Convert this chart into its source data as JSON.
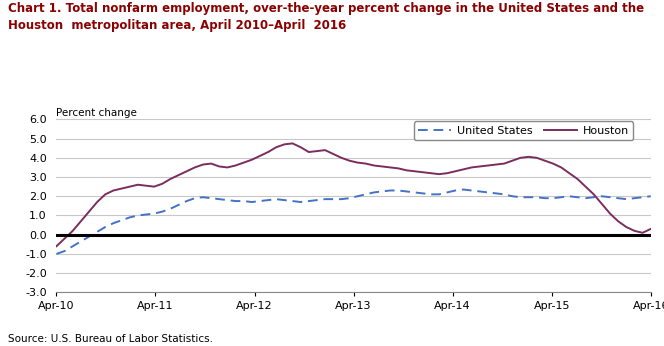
{
  "title_line1": "Chart 1. Total nonfarm employment, over-the-year percent change in the United States and the",
  "title_line2": "Houston  metropolitan area, April 2010–April  2016",
  "ylabel": "Percent change",
  "source": "Source: U.S. Bureau of Labor Statistics.",
  "ylim": [
    -3.0,
    6.0
  ],
  "yticks": [
    -3.0,
    -2.0,
    -1.0,
    0.0,
    1.0,
    2.0,
    3.0,
    4.0,
    5.0,
    6.0
  ],
  "xtick_labels": [
    "Apr-10",
    "Apr-11",
    "Apr-12",
    "Apr-13",
    "Apr-14",
    "Apr-15",
    "Apr-16"
  ],
  "us_color": "#4472C4",
  "houston_color": "#7B2D5E",
  "background_color": "#FFFFFF",
  "grid_color": "#C8C8C8",
  "title_color": "#8B0000",
  "us_data": [
    -1.0,
    -0.85,
    -0.6,
    -0.35,
    -0.1,
    0.15,
    0.4,
    0.6,
    0.75,
    0.9,
    1.0,
    1.05,
    1.1,
    1.2,
    1.35,
    1.55,
    1.75,
    1.9,
    1.95,
    1.9,
    1.85,
    1.8,
    1.75,
    1.75,
    1.7,
    1.75,
    1.8,
    1.85,
    1.8,
    1.75,
    1.7,
    1.75,
    1.8,
    1.85,
    1.85,
    1.85,
    1.9,
    2.0,
    2.1,
    2.2,
    2.25,
    2.3,
    2.3,
    2.25,
    2.2,
    2.15,
    2.1,
    2.1,
    2.2,
    2.3,
    2.35,
    2.3,
    2.25,
    2.2,
    2.15,
    2.1,
    2.0,
    1.95,
    1.95,
    1.95,
    1.9,
    1.9,
    1.95,
    2.0,
    1.95,
    1.9,
    1.95,
    2.0,
    1.95,
    1.9,
    1.85,
    1.9,
    1.95,
    2.0
  ],
  "houston_data": [
    -0.6,
    -0.2,
    0.2,
    0.7,
    1.2,
    1.7,
    2.1,
    2.3,
    2.4,
    2.5,
    2.6,
    2.55,
    2.5,
    2.65,
    2.9,
    3.1,
    3.3,
    3.5,
    3.65,
    3.7,
    3.55,
    3.5,
    3.6,
    3.75,
    3.9,
    4.1,
    4.3,
    4.55,
    4.7,
    4.75,
    4.55,
    4.3,
    4.35,
    4.4,
    4.2,
    4.0,
    3.85,
    3.75,
    3.7,
    3.6,
    3.55,
    3.5,
    3.45,
    3.35,
    3.3,
    3.25,
    3.2,
    3.15,
    3.2,
    3.3,
    3.4,
    3.5,
    3.55,
    3.6,
    3.65,
    3.7,
    3.85,
    4.0,
    4.05,
    4.0,
    3.85,
    3.7,
    3.5,
    3.2,
    2.9,
    2.5,
    2.1,
    1.6,
    1.1,
    0.7,
    0.4,
    0.2,
    0.1,
    0.3
  ]
}
